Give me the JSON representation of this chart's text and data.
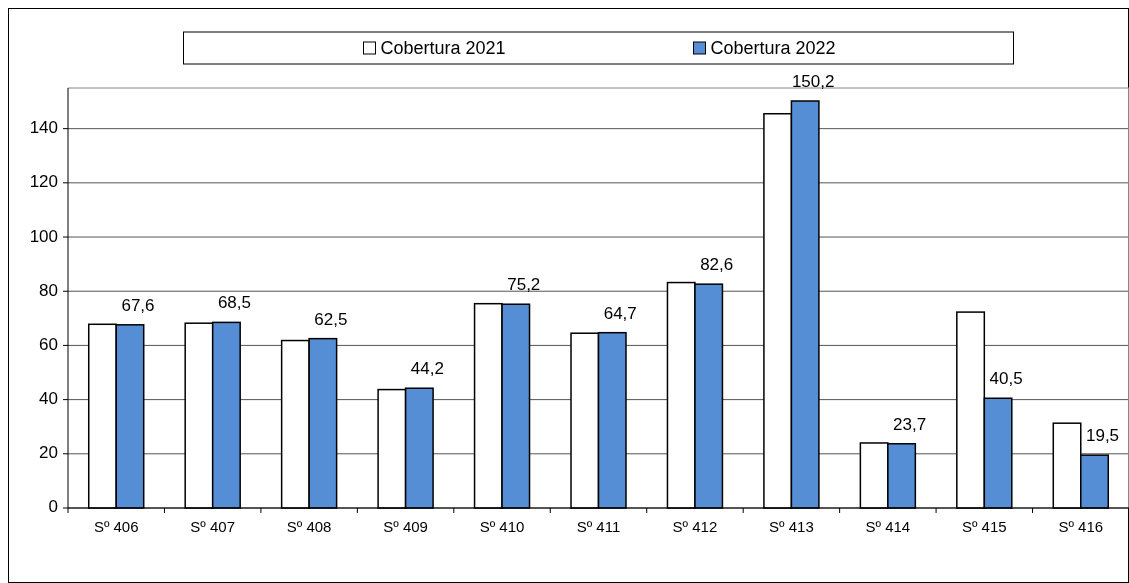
{
  "chart_data": {
    "type": "bar",
    "categories": [
      "Sº 406",
      "Sº 407",
      "Sº 408",
      "Sº 409",
      "Sº 410",
      "Sº 411",
      "Sº 412",
      "Sº 413",
      "Sº 414",
      "Sº 415",
      "Sº 416"
    ],
    "series": [
      {
        "name": "Cobertura 2021",
        "color": "#ffffff",
        "values": [
          67.8,
          68.2,
          61.8,
          43.7,
          75.4,
          64.5,
          83.2,
          145.5,
          24.0,
          72.3,
          31.3
        ]
      },
      {
        "name": "Cobertura 2022",
        "color": "#558ed5",
        "values": [
          67.6,
          68.5,
          62.5,
          44.2,
          75.2,
          64.7,
          82.6,
          150.2,
          23.7,
          40.5,
          19.5
        ],
        "value_labels": [
          "67,6",
          "68,5",
          "62,5",
          "44,2",
          "75,2",
          "64,7",
          "82,6",
          "150,2",
          "23,7",
          "40,5",
          "19,5"
        ]
      }
    ],
    "ylim": [
      0,
      155
    ],
    "yticks": [
      0,
      20,
      40,
      60,
      80,
      100,
      120,
      140
    ],
    "grid": "y",
    "legend": "top"
  }
}
